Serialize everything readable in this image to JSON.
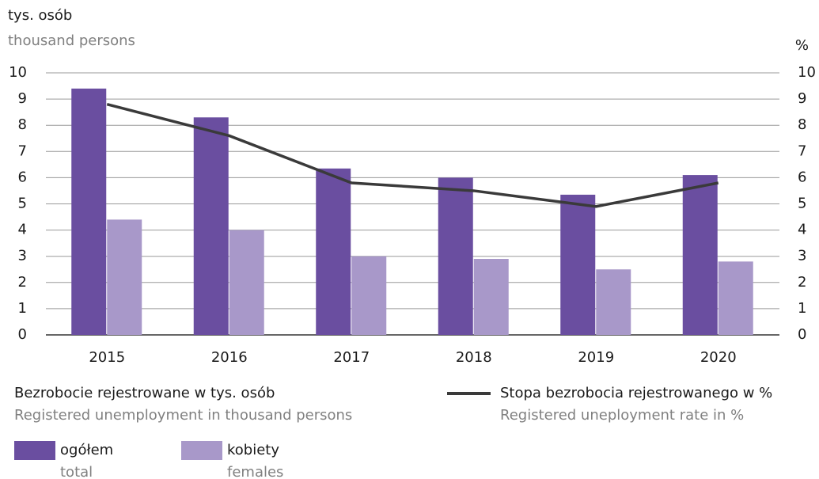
{
  "chart_data": {
    "type": "bar",
    "ylabel": "tys. osób",
    "ylabel_en": "thousand persons",
    "y2label": "%",
    "categories": [
      "2015",
      "2016",
      "2017",
      "2018",
      "2019",
      "2020"
    ],
    "legend_group_title": "Bezrobocie rejestrowane w tys. osób",
    "legend_group_subtitle": "Registered unemployment in thousand persons",
    "series": [
      {
        "name": "ogółem",
        "name_en": "total",
        "color": "#6a4ea0",
        "values": [
          9.4,
          8.3,
          6.35,
          6.0,
          5.35,
          6.1
        ]
      },
      {
        "name": "kobiety",
        "name_en": "females",
        "color": "#a898c9",
        "values": [
          4.4,
          4.0,
          3.0,
          2.9,
          2.5,
          2.8
        ]
      },
      {
        "name": "Stopa bezrobocia rejestrowanego w %",
        "name_en": "Registered uneployment rate in %",
        "type": "line",
        "axis": "y2",
        "color": "#3a3a3a",
        "values": [
          8.8,
          7.6,
          5.8,
          5.5,
          4.9,
          5.8
        ]
      }
    ],
    "ylim": [
      0,
      10
    ],
    "yticks": [
      0,
      1,
      2,
      3,
      4,
      5,
      6,
      7,
      8,
      9,
      10
    ],
    "y2lim": [
      0,
      10
    ],
    "y2ticks": [
      0,
      1,
      2,
      3,
      4,
      5,
      6,
      7,
      8,
      9,
      10
    ],
    "grid": true
  }
}
